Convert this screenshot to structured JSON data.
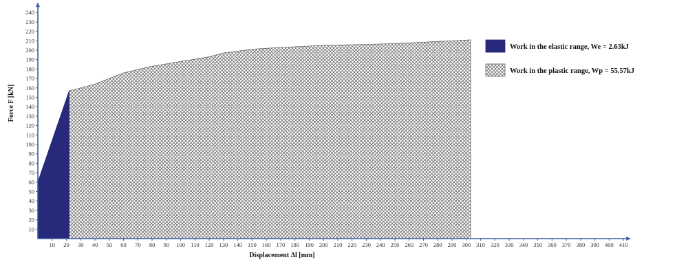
{
  "chart_data": {
    "type": "area",
    "xlabel": "Displacement  Δl [mm]",
    "ylabel": "Force F [kN]",
    "xlim": [
      0,
      410
    ],
    "ylim": [
      0,
      240
    ],
    "x_ticks": [
      10,
      20,
      30,
      40,
      50,
      60,
      70,
      80,
      90,
      100,
      110,
      120,
      130,
      140,
      150,
      160,
      170,
      180,
      190,
      200,
      210,
      220,
      230,
      240,
      250,
      260,
      270,
      280,
      290,
      300,
      310,
      320,
      330,
      340,
      350,
      360,
      370,
      380,
      390,
      400,
      410
    ],
    "y_ticks": [
      10,
      20,
      30,
      40,
      50,
      60,
      70,
      80,
      90,
      100,
      110,
      120,
      130,
      140,
      150,
      160,
      170,
      180,
      190,
      200,
      210,
      220,
      230,
      240
    ],
    "grid": false,
    "legend_position": "right",
    "series": [
      {
        "name": "Work in the elastic range, We = 2.63kJ",
        "color": "#27297a",
        "fill": "solid",
        "x": [
          0,
          22
        ],
        "y": [
          60,
          157
        ]
      },
      {
        "name": "Work in the plastic range, Wp = 55.57kJ",
        "color": "#555555",
        "fill": "crosshatch",
        "x": [
          22,
          25,
          40,
          60,
          80,
          100,
          120,
          130,
          150,
          170,
          200,
          250,
          303
        ],
        "y": [
          157,
          158,
          164,
          176,
          183,
          188,
          193,
          197,
          201,
          203,
          205,
          207,
          211
        ]
      }
    ]
  }
}
